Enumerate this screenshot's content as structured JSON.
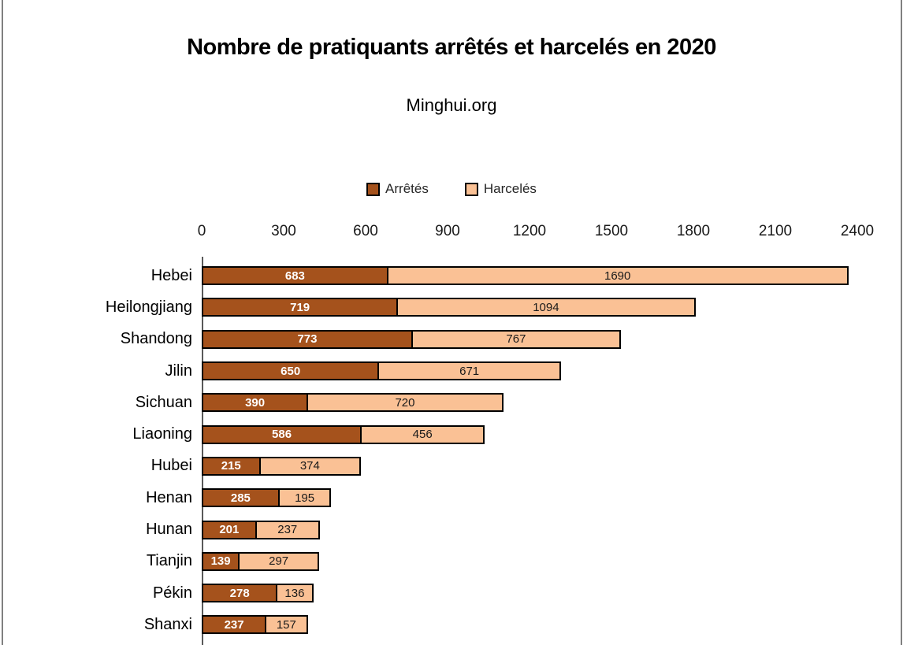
{
  "page": {
    "background": "#ffffff",
    "frame_border_color": "#808080"
  },
  "chart_data": {
    "type": "bar",
    "orientation": "horizontal-stacked",
    "title": "Nombre de pratiquants arrêtés et harcelés en 2020",
    "subtitle": "Minghui.org",
    "categories": [
      "Hebei",
      "Heilongjiang",
      "Shandong",
      "Jilin",
      "Sichuan",
      "Liaoning",
      "Hubei",
      "Henan",
      "Hunan",
      "Tianjin",
      "Pékin",
      "Shanxi"
    ],
    "series": [
      {
        "name": "Arrêtés",
        "color": "#A5521C",
        "label_color": "#ffffff",
        "values": [
          683,
          719,
          773,
          650,
          390,
          586,
          215,
          285,
          201,
          139,
          278,
          237
        ]
      },
      {
        "name": "Harcelés",
        "color": "#FAC195",
        "label_color": "#1a1a1a",
        "values": [
          1690,
          1094,
          767,
          671,
          720,
          456,
          374,
          195,
          237,
          297,
          136,
          157
        ]
      }
    ],
    "xlim": [
      0,
      2400
    ],
    "x_ticks": [
      0,
      300,
      600,
      900,
      1200,
      1500,
      1800,
      2100,
      2400
    ],
    "legend_position": "top-center",
    "grid": false,
    "bar_border_color": "#000000",
    "axis_line_color": "#595959"
  }
}
